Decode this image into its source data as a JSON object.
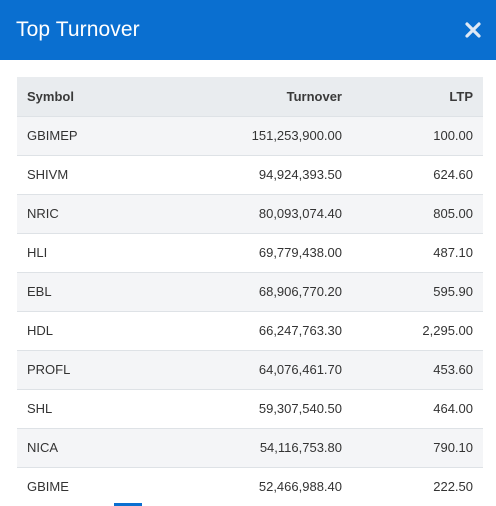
{
  "modal": {
    "title": "Top Turnover",
    "close_icon": "close-icon"
  },
  "table": {
    "headers": {
      "symbol": "Symbol",
      "turnover": "Turnover",
      "ltp": "LTP"
    },
    "rows": [
      {
        "symbol": "GBIMEP",
        "turnover": "151,253,900.00",
        "ltp": "100.00"
      },
      {
        "symbol": "SHIVM",
        "turnover": "94,924,393.50",
        "ltp": "624.60"
      },
      {
        "symbol": "NRIC",
        "turnover": "80,093,074.40",
        "ltp": "805.00"
      },
      {
        "symbol": "HLI",
        "turnover": "69,779,438.00",
        "ltp": "487.10"
      },
      {
        "symbol": "EBL",
        "turnover": "68,906,770.20",
        "ltp": "595.90"
      },
      {
        "symbol": "HDL",
        "turnover": "66,247,763.30",
        "ltp": "2,295.00"
      },
      {
        "symbol": "PROFL",
        "turnover": "64,076,461.70",
        "ltp": "453.60"
      },
      {
        "symbol": "SHL",
        "turnover": "59,307,540.50",
        "ltp": "464.00"
      },
      {
        "symbol": "NICA",
        "turnover": "54,116,753.80",
        "ltp": "790.10"
      },
      {
        "symbol": "GBIME",
        "turnover": "52,466,988.40",
        "ltp": "222.50"
      }
    ]
  },
  "colors": {
    "header_bg": "#0a6fd0",
    "table_head_bg": "#e9ecef",
    "row_stripe": "#f4f5f7"
  }
}
